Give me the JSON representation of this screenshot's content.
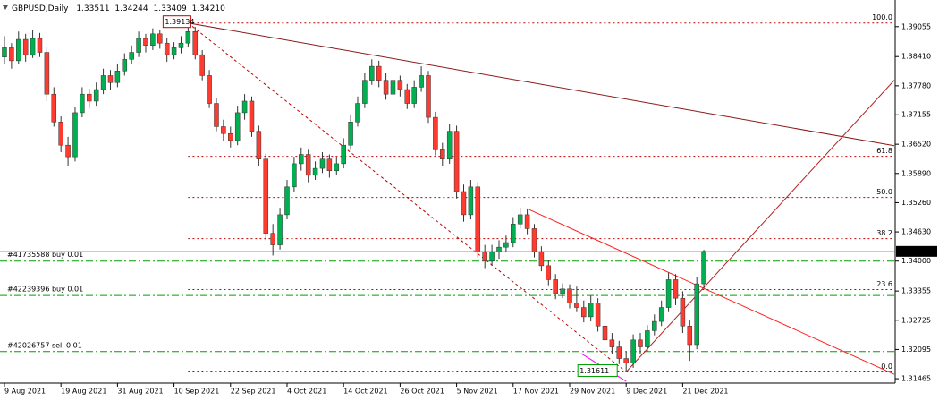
{
  "chart_data": {
    "type": "candlestick",
    "symbol": "GBPUSD,Daily",
    "quote": [
      "1.33511",
      "1.34244",
      "1.33409",
      "1.34210"
    ],
    "up_color": "#00b050",
    "down_color": "#ff3b30",
    "wick_color": "#333333",
    "categories": [
      "9 Aug 2021",
      null,
      null,
      null,
      null,
      null,
      null,
      null,
      "19 Aug 2021",
      null,
      null,
      null,
      null,
      null,
      null,
      null,
      "31 Aug 2021",
      null,
      null,
      null,
      null,
      null,
      null,
      null,
      "10 Sep 2021",
      null,
      null,
      null,
      null,
      null,
      null,
      null,
      "22 Sep 2021",
      null,
      null,
      null,
      null,
      null,
      null,
      null,
      "4 Oct 2021",
      null,
      null,
      null,
      null,
      null,
      null,
      null,
      "14 Oct 2021",
      null,
      null,
      null,
      null,
      null,
      null,
      null,
      "26 Oct 2021",
      null,
      null,
      null,
      null,
      null,
      null,
      null,
      "5 Nov 2021",
      null,
      null,
      null,
      null,
      null,
      null,
      null,
      "17 Nov 2021",
      null,
      null,
      null,
      null,
      null,
      null,
      null,
      "29 Nov 2021",
      null,
      null,
      null,
      null,
      null,
      null,
      null,
      "9 Dec 2021",
      null,
      null,
      null,
      null,
      null,
      null,
      null,
      "21 Dec 2021",
      null,
      null,
      null
    ],
    "ohlc": [
      [
        1.384,
        1.3885,
        1.3825,
        1.386
      ],
      [
        1.386,
        1.387,
        1.3815,
        1.3832
      ],
      [
        1.3832,
        1.3895,
        1.3825,
        1.3878
      ],
      [
        1.3878,
        1.389,
        1.383,
        1.3845
      ],
      [
        1.3845,
        1.3898,
        1.3838,
        1.388
      ],
      [
        1.388,
        1.3892,
        1.384,
        1.385
      ],
      [
        1.385,
        1.3862,
        1.3745,
        1.376
      ],
      [
        1.376,
        1.3775,
        1.369,
        1.37
      ],
      [
        1.37,
        1.3712,
        1.3635,
        1.365
      ],
      [
        1.365,
        1.3668,
        1.3605,
        1.3625
      ],
      [
        1.3625,
        1.3732,
        1.3615,
        1.372
      ],
      [
        1.372,
        1.3775,
        1.371,
        1.376
      ],
      [
        1.376,
        1.3772,
        1.373,
        1.3745
      ],
      [
        1.3745,
        1.3785,
        1.3735,
        1.377
      ],
      [
        1.377,
        1.3815,
        1.376,
        1.38
      ],
      [
        1.38,
        1.3812,
        1.377,
        1.3785
      ],
      [
        1.3785,
        1.3825,
        1.3775,
        1.381
      ],
      [
        1.381,
        1.3848,
        1.38,
        1.3835
      ],
      [
        1.3835,
        1.3865,
        1.3825,
        1.385
      ],
      [
        1.385,
        1.3895,
        1.384,
        1.388
      ],
      [
        1.388,
        1.389,
        1.385,
        1.3865
      ],
      [
        1.3865,
        1.3902,
        1.3855,
        1.389
      ],
      [
        1.389,
        1.3898,
        1.3858,
        1.387
      ],
      [
        1.387,
        1.388,
        1.383,
        1.3845
      ],
      [
        1.3845,
        1.3872,
        1.3835,
        1.386
      ],
      [
        1.386,
        1.3885,
        1.3848,
        1.387
      ],
      [
        1.387,
        1.39134,
        1.3862,
        1.3895
      ],
      [
        1.3895,
        1.3905,
        1.3835,
        1.3845
      ],
      [
        1.3845,
        1.3855,
        1.379,
        1.38
      ],
      [
        1.38,
        1.3812,
        1.373,
        1.374
      ],
      [
        1.374,
        1.3752,
        1.368,
        1.369
      ],
      [
        1.369,
        1.3705,
        1.366,
        1.3675
      ],
      [
        1.3675,
        1.369,
        1.3645,
        1.366
      ],
      [
        1.366,
        1.3735,
        1.365,
        1.372
      ],
      [
        1.372,
        1.376,
        1.3705,
        1.3745
      ],
      [
        1.3745,
        1.3755,
        1.3668,
        1.368
      ],
      [
        1.368,
        1.3692,
        1.3605,
        1.362
      ],
      [
        1.362,
        1.3632,
        1.3445,
        1.346
      ],
      [
        1.346,
        1.348,
        1.3412,
        1.3435
      ],
      [
        1.3435,
        1.3515,
        1.3425,
        1.35
      ],
      [
        1.35,
        1.3575,
        1.349,
        1.356
      ],
      [
        1.356,
        1.3625,
        1.3548,
        1.361
      ],
      [
        1.361,
        1.3645,
        1.3595,
        1.363
      ],
      [
        1.363,
        1.364,
        1.357,
        1.3585
      ],
      [
        1.3585,
        1.3615,
        1.3575,
        1.36
      ],
      [
        1.36,
        1.3635,
        1.359,
        1.362
      ],
      [
        1.362,
        1.363,
        1.358,
        1.3595
      ],
      [
        1.3595,
        1.3625,
        1.3585,
        1.361
      ],
      [
        1.361,
        1.3665,
        1.36,
        1.365
      ],
      [
        1.365,
        1.3715,
        1.364,
        1.37
      ],
      [
        1.37,
        1.3755,
        1.369,
        1.374
      ],
      [
        1.374,
        1.3805,
        1.373,
        1.379
      ],
      [
        1.379,
        1.3835,
        1.378,
        1.382
      ],
      [
        1.382,
        1.3832,
        1.3775,
        1.379
      ],
      [
        1.379,
        1.3805,
        1.3748,
        1.376
      ],
      [
        1.376,
        1.3805,
        1.375,
        1.379
      ],
      [
        1.379,
        1.38,
        1.3755,
        1.377
      ],
      [
        1.377,
        1.3782,
        1.3728,
        1.374
      ],
      [
        1.374,
        1.379,
        1.373,
        1.3775
      ],
      [
        1.3775,
        1.382,
        1.3765,
        1.38
      ],
      [
        1.38,
        1.381,
        1.3698,
        1.371
      ],
      [
        1.371,
        1.3722,
        1.3628,
        1.364
      ],
      [
        1.364,
        1.3655,
        1.3605,
        1.362
      ],
      [
        1.362,
        1.3695,
        1.361,
        1.368
      ],
      [
        1.368,
        1.3692,
        1.3535,
        1.355
      ],
      [
        1.355,
        1.3565,
        1.3485,
        1.35
      ],
      [
        1.35,
        1.3575,
        1.349,
        1.356
      ],
      [
        1.356,
        1.357,
        1.3408,
        1.342
      ],
      [
        1.342,
        1.3435,
        1.3385,
        1.34
      ],
      [
        1.34,
        1.3435,
        1.339,
        1.342
      ],
      [
        1.342,
        1.3445,
        1.3405,
        1.343
      ],
      [
        1.343,
        1.3455,
        1.342,
        1.344
      ],
      [
        1.344,
        1.3495,
        1.343,
        1.348
      ],
      [
        1.348,
        1.3515,
        1.347,
        1.35
      ],
      [
        1.35,
        1.3512,
        1.3458,
        1.347
      ],
      [
        1.347,
        1.348,
        1.3408,
        1.342
      ],
      [
        1.342,
        1.3432,
        1.3378,
        1.339
      ],
      [
        1.339,
        1.3402,
        1.3348,
        1.336
      ],
      [
        1.336,
        1.3372,
        1.3318,
        1.333
      ],
      [
        1.333,
        1.3352,
        1.332,
        1.334
      ],
      [
        1.334,
        1.335,
        1.3298,
        1.331
      ],
      [
        1.331,
        1.3345,
        1.329,
        1.33
      ],
      [
        1.33,
        1.3315,
        1.3268,
        1.328
      ],
      [
        1.328,
        1.3325,
        1.327,
        1.331
      ],
      [
        1.331,
        1.332,
        1.3248,
        1.326
      ],
      [
        1.326,
        1.3272,
        1.3218,
        1.323
      ],
      [
        1.323,
        1.3245,
        1.32,
        1.3215
      ],
      [
        1.3215,
        1.3228,
        1.3178,
        1.319
      ],
      [
        1.319,
        1.3205,
        1.3161,
        1.318
      ],
      [
        1.318,
        1.3242,
        1.317,
        1.323
      ],
      [
        1.323,
        1.3245,
        1.32,
        1.3215
      ],
      [
        1.3215,
        1.3262,
        1.3205,
        1.325
      ],
      [
        1.325,
        1.3285,
        1.324,
        1.327
      ],
      [
        1.327,
        1.3315,
        1.326,
        1.33
      ],
      [
        1.33,
        1.3375,
        1.329,
        1.336
      ],
      [
        1.336,
        1.3372,
        1.3305,
        1.332
      ],
      [
        1.332,
        1.3335,
        1.3245,
        1.326
      ],
      [
        1.326,
        1.3272,
        1.3185,
        1.322
      ],
      [
        1.322,
        1.3365,
        1.321,
        1.3351
      ],
      [
        1.33511,
        1.34244,
        1.33409,
        1.3421
      ]
    ],
    "xlim": [
      -0.63,
      125.95
    ],
    "ylim": [
      1.3137,
      1.3963
    ],
    "yticks": [
      {
        "value": 1.39055,
        "label": "1.39055"
      },
      {
        "value": 1.3841,
        "label": "1.38410"
      },
      {
        "value": 1.3778,
        "label": "1.37780"
      },
      {
        "value": 1.37155,
        "label": "1.37155"
      },
      {
        "value": 1.3652,
        "label": "1.36520"
      },
      {
        "value": 1.3589,
        "label": "1.35890"
      },
      {
        "value": 1.3526,
        "label": "1.35260"
      },
      {
        "value": 1.3463,
        "label": "1.34630"
      },
      {
        "value": 1.34,
        "label": "1.34000"
      },
      {
        "value": 1.33355,
        "label": "1.33355"
      },
      {
        "value": 1.32725,
        "label": "1.32725"
      },
      {
        "value": 1.32095,
        "label": "1.32095"
      },
      {
        "value": 1.31465,
        "label": "1.31465"
      }
    ],
    "current_price": {
      "value": 1.3421,
      "label": "1.34210"
    },
    "fibo": {
      "high": 1.39134,
      "low": 1.31611,
      "x": [
        26,
        88
      ],
      "color": "#c00000",
      "levels": [
        {
          "value": 100,
          "label": "100.0"
        },
        {
          "value": 61.8,
          "label": "61.8"
        },
        {
          "value": 50,
          "label": "50.0"
        },
        {
          "value": 38.2,
          "label": "38.2"
        },
        {
          "value": 23.6,
          "label": "23.6"
        },
        {
          "value": 0,
          "label": "0.0"
        }
      ]
    },
    "orders": [
      {
        "label": "#41735588 buy 0.01",
        "price": 1.34
      },
      {
        "label": "#42239396 buy 0.01",
        "price": 1.3326
      },
      {
        "label": "#42026757 sell 0.01",
        "price": 1.3205
      }
    ],
    "order_color": "#00a000",
    "trendlines": [
      {
        "x": [
          26,
          125.95
        ],
        "y": [
          1.39134,
          1.3649
        ],
        "color": "#8b1a1a"
      },
      {
        "x": [
          74,
          125.95
        ],
        "y": [
          1.3513,
          1.3156
        ],
        "color": "#ff2020"
      },
      {
        "x": [
          88,
          125.95
        ],
        "y": [
          1.31611,
          1.379
        ],
        "color": "#b22222"
      },
      {
        "x": [
          81.6,
          88
        ],
        "y": [
          1.3201,
          1.3141
        ],
        "color": "#ff00ff"
      }
    ]
  }
}
